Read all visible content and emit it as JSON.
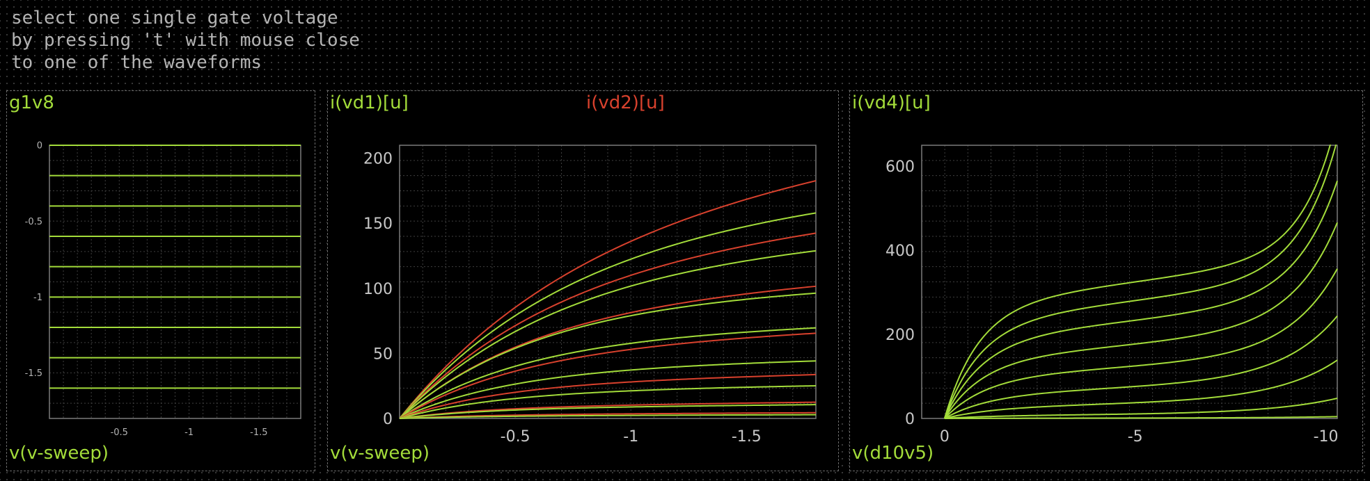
{
  "instructions": {
    "lines": [
      "select one single gate voltage",
      "by pressing 't' with mouse close",
      "to one of the waveforms"
    ]
  },
  "colors": {
    "green": "#a3dc3a",
    "red": "#d8412d",
    "text": "#b4b4b4",
    "grid": "#3f3f3f",
    "frame": "#7a7a7a",
    "background": "#000000"
  },
  "chart_data": [
    {
      "id": "g1v8",
      "type": "line",
      "ylabel": "g1v8",
      "xlabel": "v(v-sweep)",
      "xlim": [
        0,
        -1.8
      ],
      "ylim": [
        -1.8,
        0
      ],
      "xticks": [
        -0.5,
        -1,
        -1.5
      ],
      "xtick_labels": [
        "-0.5",
        "-1",
        "-1.5"
      ],
      "yticks": [
        0,
        -0.5,
        -1,
        -1.5
      ],
      "ytick_labels": [
        "0",
        "-0.5",
        "-1",
        "-1.5"
      ],
      "grid": true,
      "series": [
        {
          "color": "green",
          "constant": 0
        },
        {
          "color": "green",
          "constant": -0.2
        },
        {
          "color": "green",
          "constant": -0.4
        },
        {
          "color": "green",
          "constant": -0.6
        },
        {
          "color": "green",
          "constant": -0.8
        },
        {
          "color": "green",
          "constant": -1.0
        },
        {
          "color": "green",
          "constant": -1.2
        },
        {
          "color": "green",
          "constant": -1.4
        },
        {
          "color": "green",
          "constant": -1.6
        }
      ]
    },
    {
      "id": "id-vd12",
      "type": "line",
      "ylabels": [
        {
          "text": "i(vd1)[u]",
          "color": "green"
        },
        {
          "text": "i(vd2)[u]",
          "color": "red"
        }
      ],
      "xlabel": "v(v-sweep)",
      "xlim": [
        0,
        -1.8
      ],
      "ylim": [
        0,
        210
      ],
      "xticks": [
        -0.5,
        -1,
        -1.5
      ],
      "xtick_labels": [
        "-0.5",
        "-1",
        "-1.5"
      ],
      "yticks": [
        0,
        50,
        100,
        150,
        200
      ],
      "ytick_labels": [
        "0",
        "50",
        "100",
        "150",
        "200"
      ],
      "grid": true,
      "model": "saturating: y = sat * (1 - exp(-x/knee)) + slope * x",
      "series": [
        {
          "color": "red",
          "sat": 160,
          "knee": 0.8,
          "slope": 22
        },
        {
          "color": "green",
          "sat": 150,
          "knee": 0.75,
          "slope": 12
        },
        {
          "color": "red",
          "sat": 125,
          "knee": 0.7,
          "slope": 15
        },
        {
          "color": "green",
          "sat": 122,
          "knee": 0.7,
          "slope": 9
        },
        {
          "color": "red",
          "sat": 88,
          "knee": 0.6,
          "slope": 10
        },
        {
          "color": "green",
          "sat": 90,
          "knee": 0.6,
          "slope": 6
        },
        {
          "color": "green",
          "sat": 63,
          "knee": 0.55,
          "slope": 5
        },
        {
          "color": "red",
          "sat": 55,
          "knee": 0.55,
          "slope": 7
        },
        {
          "color": "green",
          "sat": 39,
          "knee": 0.5,
          "slope": 3.5
        },
        {
          "color": "red",
          "sat": 27,
          "knee": 0.45,
          "slope": 4
        },
        {
          "color": "green",
          "sat": 21,
          "knee": 0.45,
          "slope": 2.5
        },
        {
          "color": "red",
          "sat": 9,
          "knee": 0.4,
          "slope": 2
        },
        {
          "color": "green",
          "sat": 8,
          "knee": 0.4,
          "slope": 1.5
        },
        {
          "color": "red",
          "sat": 3,
          "knee": 0.4,
          "slope": 0.8
        },
        {
          "color": "green",
          "sat": 2,
          "knee": 0.4,
          "slope": 0.5
        }
      ]
    },
    {
      "id": "id-vd4",
      "type": "line",
      "ylabel": "i(vd4)[u]",
      "xlabel": "v(d10v5)",
      "xlim": [
        0.6,
        -10.3
      ],
      "ylim": [
        0,
        650
      ],
      "xticks": [
        0,
        -5,
        -10
      ],
      "xtick_labels": [
        "0",
        "-5",
        "-10"
      ],
      "yticks": [
        0,
        200,
        400,
        600
      ],
      "ytick_labels": [
        "0",
        "200",
        "400",
        "600"
      ],
      "grid": true,
      "model": "y = sat * (1 - exp(-x/knee)) + slope * x + bkA * exp((x - 10.1)/bkT)",
      "series": [
        {
          "color": "green",
          "sat": 270,
          "knee": 0.9,
          "slope": 11,
          "bkA": 265,
          "bkT": 0.9
        },
        {
          "color": "green",
          "sat": 230,
          "knee": 0.95,
          "slope": 10,
          "bkA": 270,
          "bkT": 1.0
        },
        {
          "color": "green",
          "sat": 190,
          "knee": 1.0,
          "slope": 8.5,
          "bkA": 240,
          "bkT": 1.1
        },
        {
          "color": "green",
          "sat": 140,
          "knee": 1.0,
          "slope": 7,
          "bkA": 215,
          "bkT": 1.2
        },
        {
          "color": "green",
          "sat": 100,
          "knee": 1.1,
          "slope": 4.5,
          "bkA": 180,
          "bkT": 1.3
        },
        {
          "color": "green",
          "sat": 58,
          "knee": 1.2,
          "slope": 3,
          "bkA": 135,
          "bkT": 1.45
        },
        {
          "color": "green",
          "sat": 27,
          "knee": 1.3,
          "slope": 1.5,
          "bkA": 85,
          "bkT": 1.6
        },
        {
          "color": "green",
          "sat": 7,
          "knee": 1.4,
          "slope": 0.4,
          "bkA": 33,
          "bkT": 1.8
        },
        {
          "color": "green",
          "sat": 0.5,
          "knee": 1.5,
          "slope": 0.05,
          "bkA": 3,
          "bkT": 2.0
        }
      ]
    }
  ]
}
